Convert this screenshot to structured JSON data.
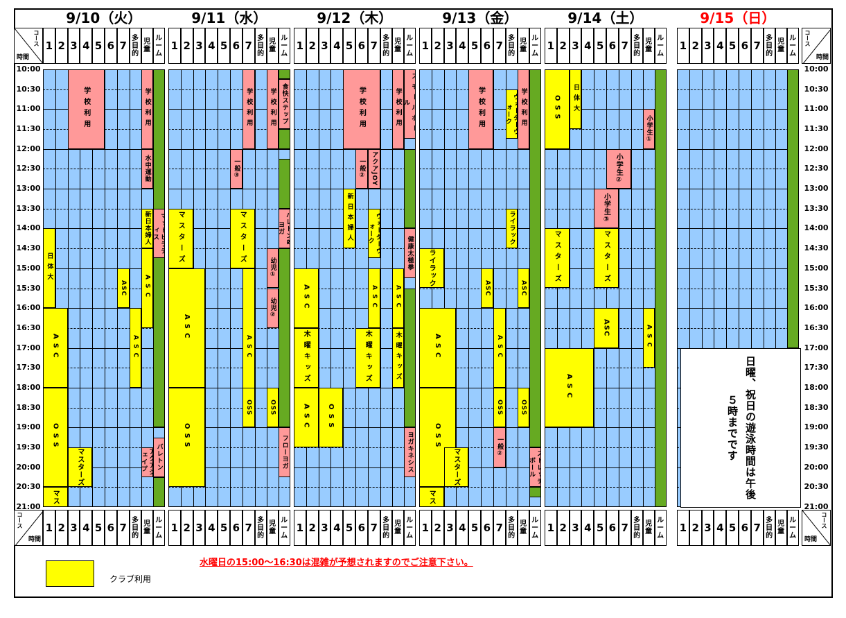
{
  "days": [
    {
      "label": "9/10（火）",
      "color": "#000000"
    },
    {
      "label": "9/11（水）",
      "color": "#000000"
    },
    {
      "label": "9/12（木）",
      "color": "#000000"
    },
    {
      "label": "9/13（金）",
      "color": "#000000"
    },
    {
      "label": "9/14（土）",
      "color": "#000000"
    },
    {
      "label": "9/15（日）",
      "color": "#ff0000"
    }
  ],
  "lane_labels": [
    "1",
    "2",
    "3",
    "4",
    "5",
    "6",
    "7",
    "多目的",
    "児童",
    "ルーム"
  ],
  "corner": {
    "course": "コース",
    "time": "時間"
  },
  "time_labels": [
    "10:00",
    "10:30",
    "11:00",
    "11:30",
    "12:00",
    "12:30",
    "13:00",
    "13:30",
    "14:00",
    "14:30",
    "15:00",
    "15:30",
    "16:00",
    "16:30",
    "17:00",
    "17:30",
    "18:00",
    "18:30",
    "19:00",
    "19:30",
    "20:00",
    "20:30",
    "21:00"
  ],
  "colors": {
    "pool": "#99ccff",
    "club": "#ffff00",
    "school": "#ff9999",
    "room": "#66aa22",
    "border": "#000000",
    "notice": "#ff0000"
  },
  "day_blocks": [
    [
      {
        "lanes": [
          2,
          4
        ],
        "start": "10:00",
        "end": "12:00",
        "label": "学校利用",
        "fill": "school"
      },
      {
        "lanes": [
          8,
          8
        ],
        "start": "10:00",
        "end": "12:00",
        "label": "学校利用",
        "fill": "school"
      },
      {
        "lanes": [
          8,
          8
        ],
        "start": "12:00",
        "end": "13:00",
        "label": "水中運動",
        "fill": "school"
      },
      {
        "lanes": [
          8,
          8
        ],
        "start": "13:30",
        "end": "14:30",
        "label": "新日本婦人",
        "fill": "club"
      },
      {
        "lanes": [
          9,
          9
        ],
        "start": "13:30",
        "end": "14:45",
        "label": "マットピラティス",
        "fill": "school"
      },
      {
        "lanes": [
          0,
          0
        ],
        "start": "14:00",
        "end": "16:00",
        "label": "日体大",
        "fill": "club"
      },
      {
        "lanes": [
          6,
          6
        ],
        "start": "15:00",
        "end": "16:00",
        "label": "ASC",
        "fill": "club"
      },
      {
        "lanes": [
          8,
          8
        ],
        "start": "14:30",
        "end": "16:30",
        "label": "ASC",
        "fill": "club"
      },
      {
        "lanes": [
          0,
          1
        ],
        "start": "16:00",
        "end": "18:00",
        "label": "ASC",
        "fill": "club"
      },
      {
        "lanes": [
          7,
          7
        ],
        "start": "16:00",
        "end": "18:00",
        "label": "ASC",
        "fill": "club"
      },
      {
        "lanes": [
          0,
          1
        ],
        "start": "18:00",
        "end": "20:30",
        "label": "OSS",
        "fill": "club"
      },
      {
        "lanes": [
          2,
          3
        ],
        "start": "19:30",
        "end": "20:30",
        "label": "マスターズ",
        "fill": "club"
      },
      {
        "lanes": [
          0,
          1
        ],
        "start": "20:30",
        "end": "21:00",
        "label": "マス",
        "fill": "club"
      },
      {
        "lanes": [
          8,
          8
        ],
        "start": "19:30",
        "end": "20:15",
        "label": "アクアシェイプ",
        "fill": "school"
      },
      {
        "lanes": [
          9,
          9
        ],
        "start": "19:15",
        "end": "20:15",
        "label": "バレトン",
        "fill": "school"
      }
    ],
    [
      {
        "lanes": [
          6,
          6
        ],
        "start": "10:00",
        "end": "12:00",
        "label": "学校利用",
        "fill": "school"
      },
      {
        "lanes": [
          8,
          8
        ],
        "start": "10:00",
        "end": "12:00",
        "label": "学校利用",
        "fill": "school"
      },
      {
        "lanes": [
          9,
          9
        ],
        "start": "10:15",
        "end": "11:30",
        "label": "食快ステップ",
        "fill": "school"
      },
      {
        "lanes": [
          5,
          5
        ],
        "start": "12:00",
        "end": "13:00",
        "label": "一般③",
        "fill": "school"
      },
      {
        "lanes": [
          0,
          1
        ],
        "start": "13:30",
        "end": "15:00",
        "label": "マスターズ",
        "fill": "club"
      },
      {
        "lanes": [
          5,
          6
        ],
        "start": "13:30",
        "end": "15:00",
        "label": "マスターズ",
        "fill": "club"
      },
      {
        "lanes": [
          9,
          9
        ],
        "start": "13:30",
        "end": "14:30",
        "label": "バレトン&ヨガ",
        "fill": "school"
      },
      {
        "lanes": [
          8,
          8
        ],
        "start": "14:30",
        "end": "15:30",
        "label": "幼児①",
        "fill": "school"
      },
      {
        "lanes": [
          8,
          8
        ],
        "start": "15:30",
        "end": "16:30",
        "label": "幼児②",
        "fill": "school"
      },
      {
        "lanes": [
          0,
          2
        ],
        "start": "15:00",
        "end": "18:00",
        "label": "ASC",
        "fill": "club"
      },
      {
        "lanes": [
          6,
          6
        ],
        "start": "15:00",
        "end": "19:00",
        "label": "ASC",
        "fill": "club"
      },
      {
        "lanes": [
          0,
          2
        ],
        "start": "18:00",
        "end": "20:30",
        "label": "OSS",
        "fill": "club"
      },
      {
        "lanes": [
          6,
          6
        ],
        "start": "18:00",
        "end": "19:00",
        "label": "OSS",
        "fill": "club"
      },
      {
        "lanes": [
          8,
          8
        ],
        "start": "18:00",
        "end": "19:00",
        "label": "OSS",
        "fill": "club"
      },
      {
        "lanes": [
          9,
          9
        ],
        "start": "19:00",
        "end": "20:15",
        "label": "フローヨガ",
        "fill": "school"
      }
    ],
    [
      {
        "lanes": [
          4,
          6
        ],
        "start": "10:00",
        "end": "12:00",
        "label": "学校利用",
        "fill": "school"
      },
      {
        "lanes": [
          8,
          8
        ],
        "start": "10:00",
        "end": "12:00",
        "label": "学校利用",
        "fill": "school"
      },
      {
        "lanes": [
          9,
          9
        ],
        "start": "10:00",
        "end": "11:45",
        "label": "スモールボール",
        "fill": "school"
      },
      {
        "lanes": [
          5,
          5
        ],
        "start": "12:00",
        "end": "13:00",
        "label": "一般②",
        "fill": "school"
      },
      {
        "lanes": [
          6,
          6
        ],
        "start": "12:00",
        "end": "13:00",
        "label": "アクアJOY",
        "fill": "school"
      },
      {
        "lanes": [
          4,
          4
        ],
        "start": "13:00",
        "end": "14:30",
        "label": "新日本婦人",
        "fill": "club"
      },
      {
        "lanes": [
          6,
          6
        ],
        "start": "13:30",
        "end": "14:45",
        "label": "ウォーターウォーク",
        "fill": "club"
      },
      {
        "lanes": [
          9,
          9
        ],
        "start": "14:00",
        "end": "15:15",
        "label": "健康太極拳",
        "fill": "school"
      },
      {
        "lanes": [
          0,
          1
        ],
        "start": "15:00",
        "end": "16:30",
        "label": "ASC",
        "fill": "club"
      },
      {
        "lanes": [
          6,
          6
        ],
        "start": "15:00",
        "end": "16:30",
        "label": "ASC",
        "fill": "club"
      },
      {
        "lanes": [
          8,
          8
        ],
        "start": "15:00",
        "end": "16:30",
        "label": "ASC",
        "fill": "club"
      },
      {
        "lanes": [
          0,
          1
        ],
        "start": "16:30",
        "end": "18:00",
        "label": "木曜キッズ",
        "fill": "club"
      },
      {
        "lanes": [
          5,
          6
        ],
        "start": "16:30",
        "end": "18:00",
        "label": "木曜キッズ",
        "fill": "club"
      },
      {
        "lanes": [
          8,
          8
        ],
        "start": "16:30",
        "end": "18:00",
        "label": "木曜キッズ",
        "fill": "club"
      },
      {
        "lanes": [
          0,
          1
        ],
        "start": "18:00",
        "end": "19:30",
        "label": "ASC",
        "fill": "club"
      },
      {
        "lanes": [
          2,
          3
        ],
        "start": "18:00",
        "end": "19:30",
        "label": "OSS",
        "fill": "club"
      },
      {
        "lanes": [
          9,
          9
        ],
        "start": "19:00",
        "end": "20:15",
        "label": "ヨガキネシス",
        "fill": "school"
      }
    ],
    [
      {
        "lanes": [
          4,
          5
        ],
        "start": "10:00",
        "end": "12:00",
        "label": "学校利用",
        "fill": "school"
      },
      {
        "lanes": [
          8,
          8
        ],
        "start": "10:00",
        "end": "12:00",
        "label": "学校利用",
        "fill": "school"
      },
      {
        "lanes": [
          7,
          7
        ],
        "start": "10:30",
        "end": "11:45",
        "label": "ウォーターウォーク",
        "fill": "club"
      },
      {
        "lanes": [
          7,
          7
        ],
        "start": "13:30",
        "end": "14:30",
        "label": "ライラック",
        "fill": "club"
      },
      {
        "lanes": [
          0,
          1
        ],
        "start": "14:30",
        "end": "15:30",
        "label": "ライラック",
        "fill": "club"
      },
      {
        "lanes": [
          5,
          5
        ],
        "start": "15:00",
        "end": "16:00",
        "label": "ASC",
        "fill": "club"
      },
      {
        "lanes": [
          8,
          8
        ],
        "start": "15:00",
        "end": "16:00",
        "label": "ASC",
        "fill": "club"
      },
      {
        "lanes": [
          0,
          2
        ],
        "start": "16:00",
        "end": "18:00",
        "label": "ASC",
        "fill": "club"
      },
      {
        "lanes": [
          6,
          6
        ],
        "start": "16:00",
        "end": "18:00",
        "label": "ASC",
        "fill": "club"
      },
      {
        "lanes": [
          0,
          2
        ],
        "start": "18:00",
        "end": "20:30",
        "label": "OSS",
        "fill": "club"
      },
      {
        "lanes": [
          6,
          6
        ],
        "start": "18:00",
        "end": "19:00",
        "label": "OSS",
        "fill": "club"
      },
      {
        "lanes": [
          8,
          8
        ],
        "start": "18:00",
        "end": "19:00",
        "label": "OSS",
        "fill": "club"
      },
      {
        "lanes": [
          6,
          6
        ],
        "start": "19:00",
        "end": "20:00",
        "label": "一般②",
        "fill": "school"
      },
      {
        "lanes": [
          2,
          3
        ],
        "start": "19:30",
        "end": "20:30",
        "label": "マスターズ",
        "fill": "club"
      },
      {
        "lanes": [
          0,
          1
        ],
        "start": "20:30",
        "end": "21:00",
        "label": "マス",
        "fill": "club"
      },
      {
        "lanes": [
          9,
          9
        ],
        "start": "19:30",
        "end": "20:30",
        "label": "ストレッチボール",
        "fill": "school"
      }
    ],
    [
      {
        "lanes": [
          0,
          1
        ],
        "start": "10:00",
        "end": "12:00",
        "label": "OSS",
        "fill": "club"
      },
      {
        "lanes": [
          2,
          2
        ],
        "start": "10:00",
        "end": "11:30",
        "label": "日体大",
        "fill": "club"
      },
      {
        "lanes": [
          8,
          8
        ],
        "start": "11:00",
        "end": "12:00",
        "label": "小学生①",
        "fill": "school"
      },
      {
        "lanes": [
          5,
          6
        ],
        "start": "12:00",
        "end": "13:00",
        "label": "小学生②",
        "fill": "school"
      },
      {
        "lanes": [
          4,
          5
        ],
        "start": "13:00",
        "end": "14:00",
        "label": "小学生③",
        "fill": "school"
      },
      {
        "lanes": [
          0,
          1
        ],
        "start": "14:00",
        "end": "15:30",
        "label": "マスターズ",
        "fill": "club"
      },
      {
        "lanes": [
          4,
          5
        ],
        "start": "14:00",
        "end": "15:30",
        "label": "マスターズ",
        "fill": "club"
      },
      {
        "lanes": [
          4,
          5
        ],
        "start": "16:00",
        "end": "17:00",
        "label": "ASC",
        "fill": "club"
      },
      {
        "lanes": [
          8,
          8
        ],
        "start": "16:00",
        "end": "17:30",
        "label": "ASC",
        "fill": "club"
      },
      {
        "lanes": [
          0,
          3
        ],
        "start": "17:00",
        "end": "19:00",
        "label": "ASC",
        "fill": "club"
      }
    ],
    []
  ],
  "room_bands": [
    [
      {
        "start": "10:00",
        "end": "19:00"
      },
      {
        "start": "20:15",
        "end": "21:00"
      }
    ],
    [
      {
        "start": "10:00",
        "end": "10:15"
      },
      {
        "start": "11:30",
        "end": "12:00"
      },
      {
        "start": "12:15",
        "end": "13:30"
      },
      {
        "start": "14:30",
        "end": "19:00"
      }
    ],
    [
      {
        "start": "10:00",
        "end": "10:00"
      },
      {
        "start": "12:00",
        "end": "14:00"
      },
      {
        "start": "15:30",
        "end": "19:00"
      }
    ],
    [
      {
        "start": "10:00",
        "end": "19:30"
      },
      {
        "start": "20:30",
        "end": "20:45"
      }
    ],
    [
      {
        "start": "10:00",
        "end": "21:00"
      }
    ],
    [
      {
        "start": "10:00",
        "end": "17:00"
      }
    ]
  ],
  "sunday_note": "日曜、祝日の遊泳時間は午後５時までです",
  "legend": {
    "label": "クラブ利用"
  },
  "notice": "水曜日の15:00〜16:30は混雑が予想されますのでご注意下さい。"
}
